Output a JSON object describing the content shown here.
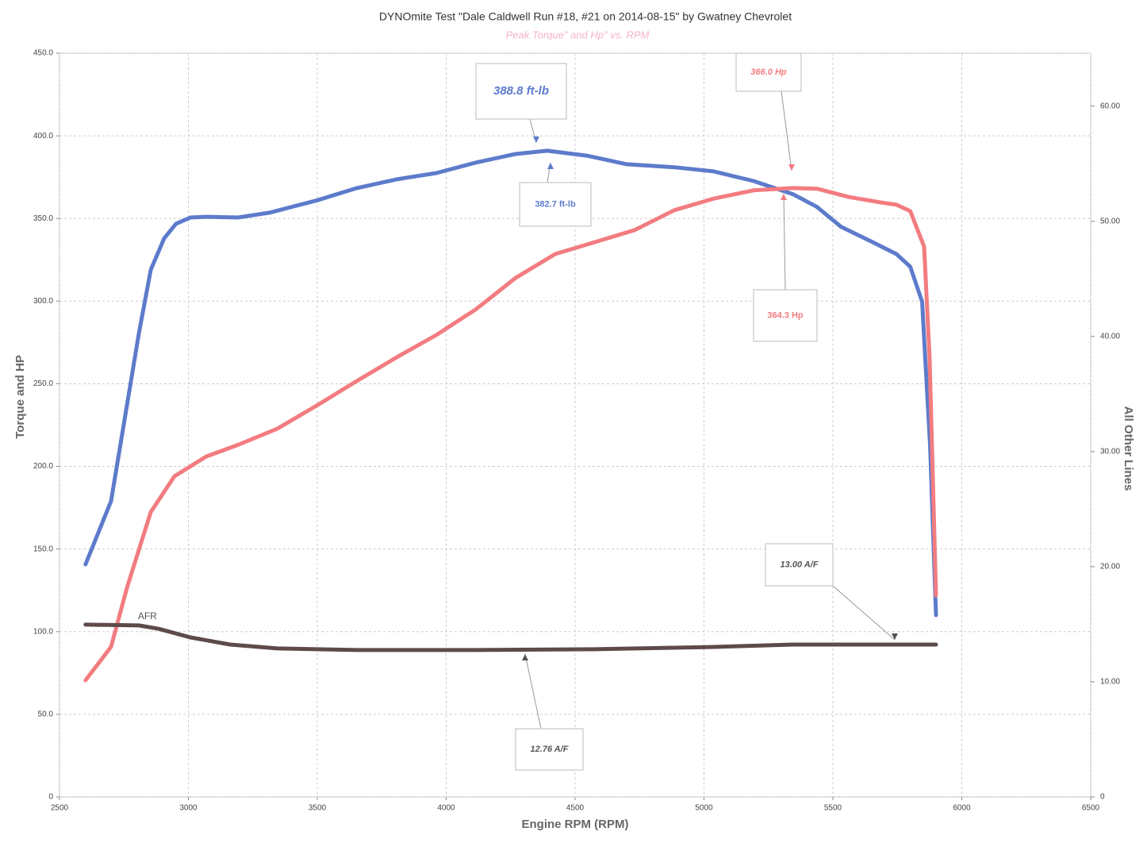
{
  "chart_data": {
    "type": "line",
    "title": "DYNOmite Test \"Dale Caldwell Run #18, #21 on 2014-08-15\" by Gwatney Chevrolet",
    "subtitle": "Peak Torque\" and Hp\" vs. RPM",
    "x_label": "Engine RPM (RPM)",
    "y_label": "Torque and HP",
    "y2_label": "All Other Lines",
    "xlim": [
      2500,
      6500
    ],
    "xticks": [
      2500,
      3000,
      3500,
      4000,
      4500,
      5000,
      5500,
      6000,
      6500
    ],
    "ylim": [
      0,
      450
    ],
    "yticks": [
      0,
      {
        "value": 50,
        "label": "50.0"
      },
      {
        "value": 100,
        "label": "100.0"
      },
      {
        "value": 150,
        "label": "150.0"
      },
      {
        "value": 200,
        "label": "200.0"
      },
      {
        "value": 250,
        "label": "250.0"
      },
      {
        "value": 300,
        "label": "300.0"
      },
      {
        "value": 350,
        "label": "350.0"
      },
      {
        "value": 400,
        "label": "400.0"
      },
      {
        "value": 450,
        "label": "450.0"
      }
    ],
    "y2lim": [
      0,
      64.6
    ],
    "y2ticks": [
      0,
      {
        "value": 10,
        "label": "10.00"
      },
      {
        "value": 20,
        "label": "20.00"
      },
      {
        "value": 30,
        "label": "30.00"
      },
      {
        "value": 40,
        "label": "40.00"
      },
      {
        "value": 50,
        "label": "50.00"
      },
      {
        "value": 60,
        "label": "60.00"
      }
    ],
    "grid": true,
    "series": [
      {
        "color": "#5d7bcb",
        "x": [
          2601,
          2700,
          2808,
          2854,
          2906,
          2952,
          3008,
          3069,
          3192,
          3315,
          3500,
          3654,
          3808,
          3962,
          4115,
          4269,
          4392,
          4546,
          4700,
          4885,
          5038,
          5192,
          5346,
          5438,
          5531,
          5654,
          5746,
          5800,
          5846,
          5877,
          5900
        ],
        "values": [
          140.7,
          179,
          280.5,
          319,
          338,
          346.8,
          350.6,
          351,
          350.6,
          353.5,
          361,
          368.4,
          373.7,
          377.5,
          383.8,
          389,
          391,
          388,
          382.8,
          381,
          378.5,
          372.7,
          364.6,
          357,
          345,
          335.7,
          328.5,
          320.8,
          299.7,
          213,
          110
        ]
      },
      {
        "color": "#f27c80",
        "x": [
          2601,
          2700,
          2762,
          2854,
          2946,
          3069,
          3192,
          3346,
          3500,
          3654,
          3808,
          3962,
          4115,
          4269,
          4423,
          4577,
          4731,
          4885,
          5038,
          5192,
          5346,
          5438,
          5562,
          5685,
          5746,
          5800,
          5854,
          5875,
          5900
        ],
        "values": [
          70.6,
          90.8,
          126.8,
          172.4,
          194,
          206,
          213,
          222.9,
          237,
          251.7,
          266,
          279.5,
          295,
          314,
          328.5,
          335.7,
          343,
          355,
          362,
          367,
          368.4,
          368,
          363,
          359.7,
          358.3,
          354.5,
          333,
          266,
          122
        ]
      },
      {
        "name": "AFR",
        "color": "#5e4a4a",
        "axis": "y2",
        "x": [
          2601,
          2808,
          2885,
          3008,
          3162,
          3346,
          3654,
          4115,
          4577,
          5038,
          5346,
          5654,
          5900
        ],
        "values": [
          14.97,
          14.9,
          14.6,
          13.86,
          13.24,
          12.9,
          12.76,
          12.76,
          12.83,
          13.03,
          13.24,
          13.24,
          13.24
        ]
      }
    ],
    "annotations": [
      "388.8 ft-lb",
      "382.7 ft-lb",
      "366.0 Hp",
      "364.3 Hp",
      "13.00 A/F",
      "12.76 A/F"
    ]
  }
}
